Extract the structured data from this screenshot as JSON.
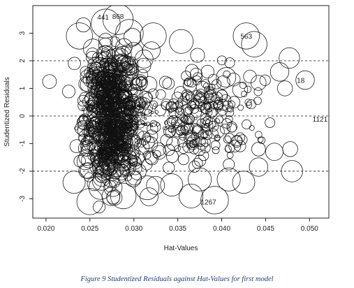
{
  "chart_data": {
    "type": "scatter",
    "xlabel": "Hat-Values",
    "ylabel": "Studentized Residuals",
    "xlim": [
      0.0185,
      0.0522
    ],
    "ylim": [
      -3.7,
      4.0
    ],
    "x_ticks": [
      "0.020",
      "0.025",
      "0.030",
      "0.035",
      "0.040",
      "0.045",
      "0.050"
    ],
    "x_tick_values": [
      0.02,
      0.025,
      0.03,
      0.035,
      0.04,
      0.045,
      0.05
    ],
    "y_ticks": [
      "-3",
      "-2",
      "-1",
      "0",
      "1",
      "2",
      "3"
    ],
    "y_tick_values": [
      -3,
      -2,
      -1,
      0,
      1,
      2,
      3
    ],
    "reference_lines": [
      -2,
      0,
      2
    ],
    "symbol": "open circles sized by Cook's distance",
    "seed": 91,
    "clusters": [
      {
        "x_mean": 0.0262,
        "x_sd": 0.0023,
        "y_mean": 0.85,
        "y_sd": 0.8,
        "n": 360,
        "size_mean": 0.35
      },
      {
        "x_mean": 0.0262,
        "x_sd": 0.0023,
        "y_mean": -0.85,
        "y_sd": 0.75,
        "n": 380,
        "size_mean": 0.35
      },
      {
        "x_mean": 0.0355,
        "x_sd": 0.0045,
        "y_mean": 0.7,
        "y_sd": 0.55,
        "n": 110,
        "size_mean": 0.25
      },
      {
        "x_mean": 0.0355,
        "x_sd": 0.0045,
        "y_mean": -0.75,
        "y_sd": 0.6,
        "n": 110,
        "size_mean": 0.25
      },
      {
        "x_mean": 0.0265,
        "x_sd": 0.003,
        "y_mean": 0.0,
        "y_sd": 0.25,
        "n": 160,
        "size_mean": 0.04
      }
    ],
    "extremes": [
      {
        "x": 0.0238,
        "y": 2.9,
        "size": 1.8
      },
      {
        "x": 0.0268,
        "y": 3.35,
        "size": 2.2
      },
      {
        "x": 0.0282,
        "y": 3.5,
        "size": 2.4
      },
      {
        "x": 0.0295,
        "y": 3.0,
        "size": 2.0
      },
      {
        "x": 0.0322,
        "y": 2.9,
        "size": 1.8
      },
      {
        "x": 0.0354,
        "y": 2.7,
        "size": 1.5
      },
      {
        "x": 0.0428,
        "y": 2.9,
        "size": 1.8
      },
      {
        "x": 0.0437,
        "y": 2.6,
        "size": 1.7
      },
      {
        "x": 0.0477,
        "y": 2.1,
        "size": 1.1
      },
      {
        "x": 0.0466,
        "y": 1.6,
        "size": 0.9
      },
      {
        "x": 0.0495,
        "y": 1.3,
        "size": 0.9
      },
      {
        "x": 0.0442,
        "y": 1.2,
        "size": 0.6
      },
      {
        "x": 0.0405,
        "y": 1.4,
        "size": 1.0
      },
      {
        "x": 0.0421,
        "y": 0.95,
        "size": 0.6
      },
      {
        "x": 0.0472,
        "y": 1.0,
        "size": 0.6
      },
      {
        "x": 0.0232,
        "y": -2.4,
        "size": 1.3
      },
      {
        "x": 0.025,
        "y": -3.1,
        "size": 1.8
      },
      {
        "x": 0.0262,
        "y": -2.6,
        "size": 1.4
      },
      {
        "x": 0.0288,
        "y": -2.9,
        "size": 1.7
      },
      {
        "x": 0.0315,
        "y": -2.6,
        "size": 1.5
      },
      {
        "x": 0.0343,
        "y": -2.5,
        "size": 1.3
      },
      {
        "x": 0.0365,
        "y": -2.9,
        "size": 1.5
      },
      {
        "x": 0.0392,
        "y": -3.05,
        "size": 2.0
      },
      {
        "x": 0.0408,
        "y": -2.3,
        "size": 1.4
      },
      {
        "x": 0.0425,
        "y": -2.4,
        "size": 1.3
      },
      {
        "x": 0.0375,
        "y": -2.3,
        "size": 1.4
      },
      {
        "x": 0.0442,
        "y": -1.85,
        "size": 0.9
      },
      {
        "x": 0.046,
        "y": -1.3,
        "size": 0.8
      },
      {
        "x": 0.048,
        "y": -2.0,
        "size": 1.2
      },
      {
        "x": 0.0478,
        "y": -1.2,
        "size": 0.6
      },
      {
        "x": 0.0442,
        "y": -1.2,
        "size": 0.5
      },
      {
        "x": 0.0204,
        "y": 1.25,
        "size": 0.5
      }
    ],
    "annotations": [
      {
        "label": "441",
        "x": 0.0265,
        "y": 3.6
      },
      {
        "label": "868",
        "x": 0.0282,
        "y": 3.62
      },
      {
        "label": "563",
        "x": 0.0428,
        "y": 2.9
      },
      {
        "label": "18",
        "x": 0.049,
        "y": 1.3
      },
      {
        "label": "1121",
        "x": 0.0512,
        "y": -0.1
      },
      {
        "label": "1267",
        "x": 0.0385,
        "y": -3.1
      }
    ]
  },
  "caption": "Figure 9 Studentized Residuals against Hat-Values for first model"
}
